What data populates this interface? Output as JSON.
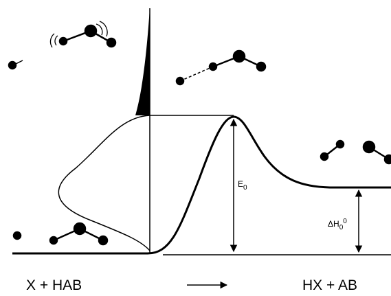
{
  "labels": {
    "reactants": "X + HAB",
    "products": "HX + AB",
    "barrier": {
      "main": "E",
      "sub": "0"
    },
    "enthalpy": {
      "main": "ΔH",
      "sub": "0",
      "sup": "0"
    }
  }
}
